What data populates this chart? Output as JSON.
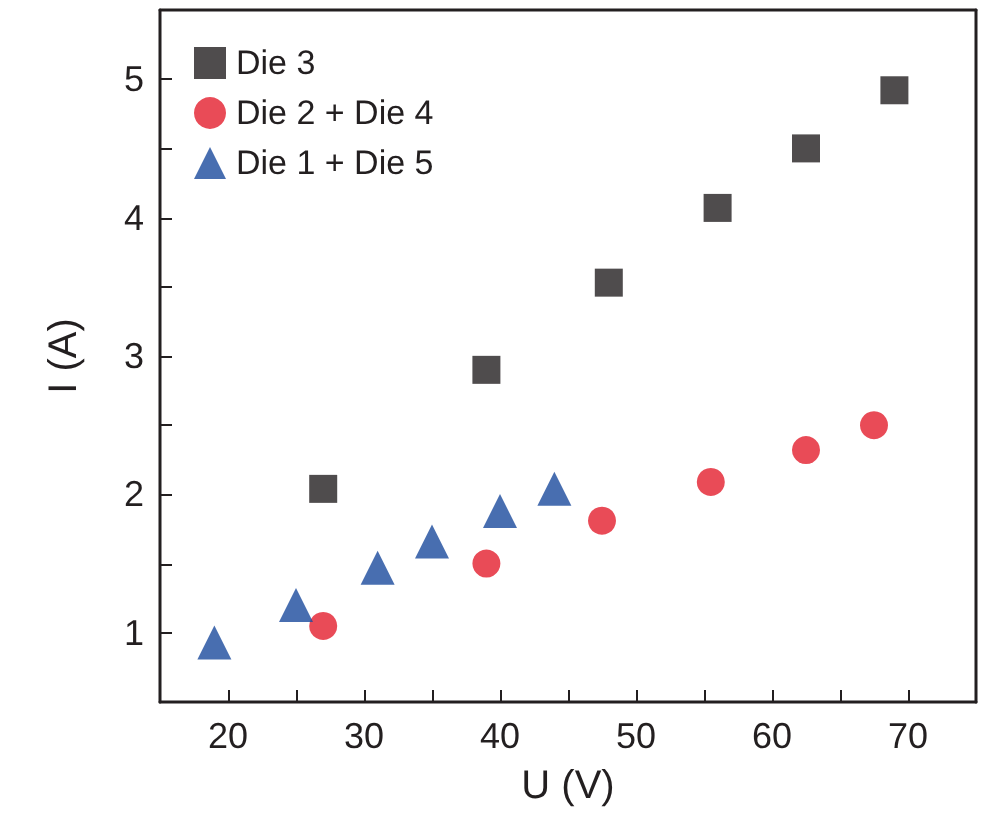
{
  "chart_data": {
    "type": "scatter",
    "xlabel": "U (V)",
    "ylabel": "I (A)",
    "xlim": [
      15,
      75
    ],
    "ylim": [
      0.5,
      5.5
    ],
    "xticks": [
      20,
      {
        "value": 25,
        "label": null
      },
      30,
      {
        "value": 35,
        "label": null
      },
      40,
      {
        "value": 45,
        "label": null
      },
      50,
      {
        "value": 55,
        "label": null
      },
      60,
      {
        "value": 65,
        "label": null
      },
      70
    ],
    "yticks": [
      1,
      {
        "value": 1.5,
        "label": null
      },
      2,
      {
        "value": 2.5,
        "label": null
      },
      3,
      {
        "value": 3.5,
        "label": null
      },
      4,
      {
        "value": 4.5,
        "label": null
      },
      5
    ],
    "grid": false,
    "legend": "top left",
    "series": [
      {
        "name": "Die 3",
        "color": "#231f20",
        "marker": "square",
        "x": [
          27,
          39,
          48,
          56,
          62.5,
          69
        ],
        "values": [
          2.04,
          2.9,
          3.53,
          4.07,
          4.5,
          4.92
        ]
      },
      {
        "name": "Die 2 + Die 4",
        "color": "#e31e2d",
        "marker": "circle",
        "x": [
          27,
          39,
          47.5,
          55.5,
          62.5,
          67.5
        ],
        "values": [
          1.05,
          1.5,
          1.81,
          2.09,
          2.32,
          2.5
        ]
      },
      {
        "name": "Die 1 + Die 5",
        "color": "#1a4a9c",
        "marker": "triangle",
        "x": [
          19,
          25,
          31,
          35,
          40,
          44
        ],
        "values": [
          0.93,
          1.2,
          1.47,
          1.66,
          1.88,
          2.04
        ]
      }
    ]
  }
}
